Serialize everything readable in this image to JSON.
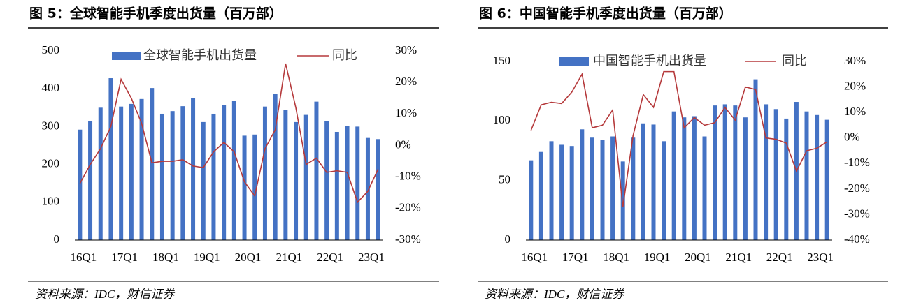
{
  "chart_data": [
    {
      "type": "bar",
      "title": "图 5：全球智能手机季度出货量（百万部）",
      "source": "资料来源：IDC，财信证券",
      "categories": [
        "16Q1",
        null,
        null,
        null,
        "17Q1",
        null,
        null,
        null,
        "18Q1",
        null,
        null,
        null,
        "19Q1",
        null,
        null,
        null,
        "20Q1",
        null,
        null,
        null,
        "21Q1",
        null,
        null,
        null,
        "22Q1",
        null,
        null,
        null,
        "23Q1",
        null
      ],
      "series": [
        {
          "name": "全球智能手机出货量",
          "color": "#4472c4",
          "values": [
            292,
            315,
            350,
            428,
            353,
            360,
            373,
            402,
            334,
            341,
            354,
            376,
            312,
            334,
            357,
            369,
            276,
            279,
            353,
            386,
            344,
            312,
            331,
            366,
            315,
            286,
            302,
            300,
            270,
            267
          ]
        },
        {
          "name": "同比",
          "color": "#b5393b",
          "axis": "y2",
          "values": [
            -12,
            -6,
            -1,
            6,
            21,
            15,
            7,
            -5.5,
            -5,
            -5,
            -4.5,
            -6.5,
            -7,
            -2,
            1,
            -2,
            -11.5,
            -16,
            -1,
            5,
            26,
            12,
            -6,
            -4,
            -8.5,
            -8,
            -8.5,
            -18,
            -14.5,
            -7.5
          ]
        }
      ],
      "ylim": [
        0,
        500
      ],
      "yticks": [
        0,
        100,
        200,
        300,
        400,
        500
      ],
      "y2lim": [
        -30,
        30
      ],
      "y2ticks": [
        {
          "value": -30,
          "label": "-30%"
        },
        {
          "value": -20,
          "label": "-20%"
        },
        {
          "value": -10,
          "label": "-10%"
        },
        {
          "value": 0,
          "label": "0%"
        },
        {
          "value": 10,
          "label": "10%"
        },
        {
          "value": 20,
          "label": "20%"
        },
        {
          "value": 30,
          "label": "30%"
        }
      ]
    },
    {
      "type": "bar",
      "title": "图 6：中国智能手机季度出货量（百万部）",
      "source": "资料来源：IDC，财信证券",
      "categories": [
        "16Q1",
        null,
        null,
        null,
        "17Q1",
        null,
        null,
        null,
        "18Q1",
        null,
        null,
        null,
        "19Q1",
        null,
        null,
        null,
        "20Q1",
        null,
        null,
        null,
        "21Q1",
        null,
        null,
        null,
        "22Q1",
        null,
        null,
        null,
        "23Q1",
        null
      ],
      "series": [
        {
          "name": "中国智能手机出货量",
          "color": "#4472c4",
          "values": [
            67,
            74,
            83,
            80,
            79,
            93,
            86,
            84,
            87,
            66,
            86,
            98,
            97,
            83,
            108,
            103,
            104,
            87,
            113,
            114,
            113,
            103,
            135,
            114,
            110,
            102,
            116,
            108,
            105,
            101
          ]
        },
        {
          "name": "同比",
          "color": "#b5393b",
          "axis": "y2",
          "values": [
            3,
            13,
            14,
            13.5,
            18,
            25,
            4,
            5,
            11,
            -27,
            1,
            17,
            12,
            26,
            26,
            4,
            8,
            5,
            6,
            12,
            7,
            20,
            19,
            0,
            -0.5,
            -2,
            -13,
            -5,
            -4,
            -1.5
          ]
        }
      ],
      "ylim": [
        0,
        150
      ],
      "yticks": [
        0,
        50,
        100,
        150
      ],
      "y2lim": [
        -40,
        30
      ],
      "y2ticks": [
        {
          "value": -40,
          "label": "-40%"
        },
        {
          "value": -30,
          "label": "-30%"
        },
        {
          "value": -20,
          "label": "-20%"
        },
        {
          "value": -10,
          "label": "-10%"
        },
        {
          "value": 0,
          "label": "0%"
        },
        {
          "value": 10,
          "label": "10%"
        },
        {
          "value": 20,
          "label": "20%"
        },
        {
          "value": 30,
          "label": "30%"
        }
      ]
    }
  ]
}
